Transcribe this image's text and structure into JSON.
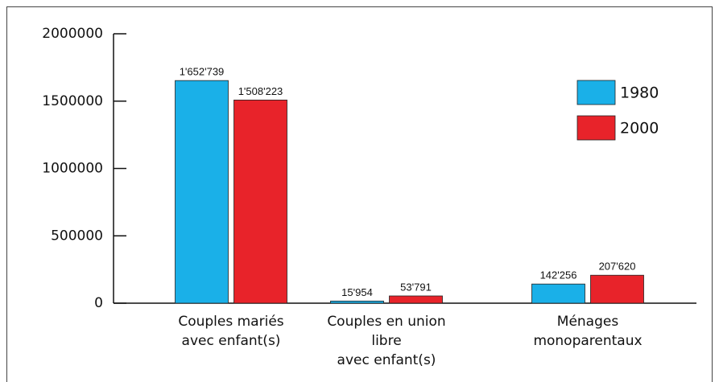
{
  "chart_data": {
    "type": "bar",
    "categories": [
      [
        "Couples mariés",
        "avec enfant(s)"
      ],
      [
        "Couples en union",
        "libre",
        "avec enfant(s)"
      ],
      [
        "Ménages",
        "monoparentaux"
      ]
    ],
    "series": [
      {
        "name": "1980",
        "color": "#1ab0e8",
        "values": [
          1652739,
          15954,
          142256
        ],
        "value_labels": [
          "1'652'739",
          "15'954",
          "142'256"
        ]
      },
      {
        "name": "2000",
        "color": "#e8232a",
        "values": [
          1508223,
          53791,
          207620
        ],
        "value_labels": [
          "1'508'223",
          "53'791",
          "207'620"
        ]
      }
    ],
    "ylim": [
      0,
      2000000
    ],
    "yticks": [
      0,
      500000,
      1000000,
      1500000,
      2000000
    ],
    "legend": "upper right"
  }
}
